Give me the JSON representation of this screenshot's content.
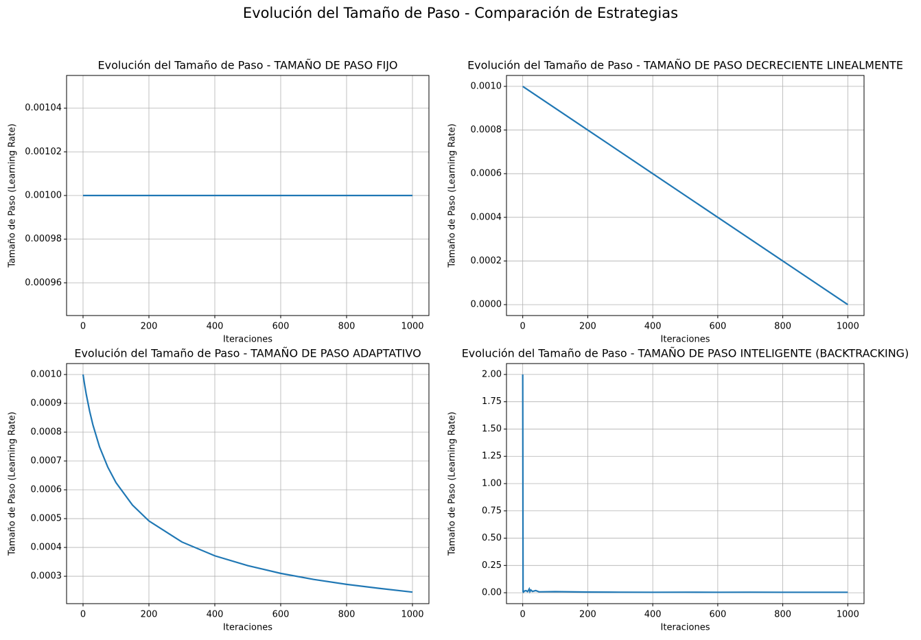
{
  "title": "Evolución del Tamaño de Paso - Comparación de Estrategias",
  "chart_data": [
    {
      "type": "line",
      "title": "Evolución del Tamaño de Paso - TAMAÑO DE PASO FIJO",
      "xlabel": "Iteraciones",
      "ylabel": "Tamaño de Paso (Learning Rate)",
      "color": "#1f77b4",
      "grid": true,
      "x": [
        0,
        200,
        400,
        600,
        800,
        1000
      ],
      "values": [
        0.001,
        0.001,
        0.001,
        0.001,
        0.001,
        0.001
      ],
      "xlim": [
        -50,
        1050
      ],
      "xticks": [
        0,
        200,
        400,
        600,
        800,
        1000
      ],
      "ylim": [
        0.000945,
        0.001055
      ],
      "yticks": [
        0.00096,
        0.00098,
        {
          "value": 0.001,
          "label": "0.00100"
        },
        0.00102,
        0.00104
      ]
    },
    {
      "type": "line",
      "title": "Evolución del Tamaño de Paso - TAMAÑO DE PASO DECRECIENTE LINEALMENTE",
      "xlabel": "Iteraciones",
      "ylabel": "Tamaño de Paso (Learning Rate)",
      "color": "#1f77b4",
      "grid": true,
      "x": [
        0,
        200,
        400,
        600,
        800,
        1000
      ],
      "values": [
        0.001,
        0.0008,
        0.0006,
        0.0004,
        0.0002,
        0
      ],
      "xlim": [
        -50,
        1050
      ],
      "xticks": [
        0,
        200,
        400,
        600,
        800,
        1000
      ],
      "ylim": [
        -5e-05,
        0.00105
      ],
      "yticks": [
        {
          "value": 0,
          "label": "0.0000"
        },
        0.0002,
        0.0004,
        0.0006,
        0.0008,
        {
          "value": 0.001,
          "label": "0.0010"
        }
      ]
    },
    {
      "type": "line",
      "title": "Evolución del Tamaño de Paso - TAMAÑO DE PASO ADAPTATIVO",
      "xlabel": "Iteraciones",
      "ylabel": "Tamaño de Paso (Learning Rate)",
      "color": "#1f77b4",
      "grid": true,
      "x": [
        0,
        5,
        10,
        20,
        30,
        50,
        75,
        100,
        150,
        200,
        300,
        400,
        500,
        600,
        700,
        800,
        900,
        1000
      ],
      "values": [
        0.001,
        0.000963,
        0.00093,
        0.000873,
        0.000825,
        0.000749,
        0.000679,
        0.000625,
        0.000547,
        0.000492,
        0.000419,
        0.000371,
        0.000337,
        0.00031,
        0.000289,
        0.000272,
        0.000258,
        0.000245
      ],
      "xlim": [
        -50,
        1050
      ],
      "xticks": [
        0,
        200,
        400,
        600,
        800,
        1000
      ],
      "ylim": [
        0.000205,
        0.001038
      ],
      "yticks": [
        0.0003,
        0.0004,
        0.0005,
        0.0006,
        0.0007,
        0.0008,
        0.0009,
        {
          "value": 0.001,
          "label": "0.0010"
        }
      ]
    },
    {
      "type": "line",
      "title": "Evolución del Tamaño de Paso - TAMAÑO DE PASO INTELIGENTE (BACKTRACKING)",
      "xlabel": "Iteraciones",
      "ylabel": "Tamaño de Paso (Learning Rate)",
      "color": "#1f77b4",
      "grid": true,
      "x": [
        0,
        1,
        2,
        5,
        10,
        15,
        20,
        22,
        25,
        30,
        40,
        50,
        100,
        200,
        300,
        400,
        500,
        600,
        700,
        800,
        900,
        1000
      ],
      "values": [
        2.0,
        0.01,
        0.005,
        0.015,
        0.02,
        0.01,
        0.035,
        0.01,
        0.025,
        0.012,
        0.02,
        0.008,
        0.01,
        0.006,
        0.005,
        0.004,
        0.005,
        0.004,
        0.005,
        0.004,
        0.004,
        0.004
      ],
      "xlim": [
        -50,
        1050
      ],
      "xticks": [
        0,
        200,
        400,
        600,
        800,
        1000
      ],
      "ylim": [
        -0.1,
        2.1
      ],
      "yticks": [
        {
          "value": 0,
          "label": "0.00"
        },
        0.25,
        {
          "value": 0.5,
          "label": "0.50"
        },
        0.75,
        {
          "value": 1,
          "label": "1.00"
        },
        1.25,
        {
          "value": 1.5,
          "label": "1.50"
        },
        1.75,
        {
          "value": 2,
          "label": "2.00"
        }
      ]
    }
  ]
}
